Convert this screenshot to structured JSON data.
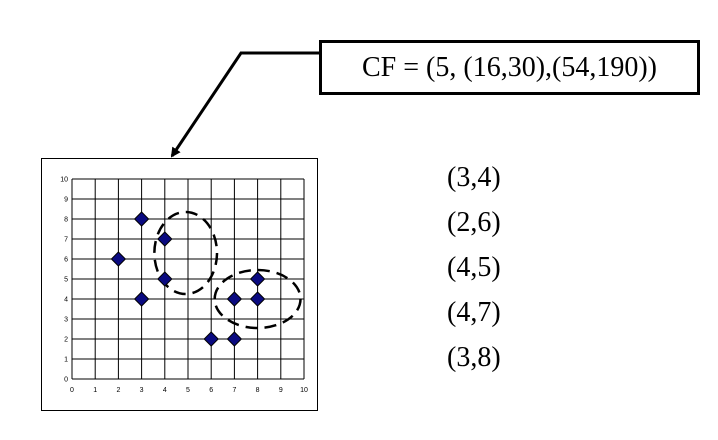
{
  "cf_label": "CF = (5, (16,30),(54,190))",
  "points_list": [
    "(3,4)",
    "(2,6)",
    "(4,5)",
    "(4,7)",
    "(3,8)"
  ],
  "colors": {
    "marker": "#0a0a80",
    "line": "#000000",
    "background": "#ffffff"
  },
  "chart_data": {
    "type": "scatter",
    "title": "",
    "xlabel": "",
    "ylabel": "",
    "xlim": [
      0,
      10
    ],
    "ylim": [
      0,
      10
    ],
    "grid": true,
    "x_ticks": [
      "0",
      "1",
      "2",
      "3",
      "4",
      "5",
      "6",
      "7",
      "8",
      "9",
      "10"
    ],
    "y_ticks": [
      "0",
      "1",
      "2",
      "3",
      "4",
      "5",
      "6",
      "7",
      "8",
      "9",
      "10"
    ],
    "series": [
      {
        "x": [
          3,
          2,
          4,
          4,
          3,
          8,
          8,
          7,
          6,
          7
        ],
        "y": [
          8,
          6,
          7,
          5,
          4,
          5,
          4,
          4,
          2,
          2
        ]
      }
    ]
  }
}
